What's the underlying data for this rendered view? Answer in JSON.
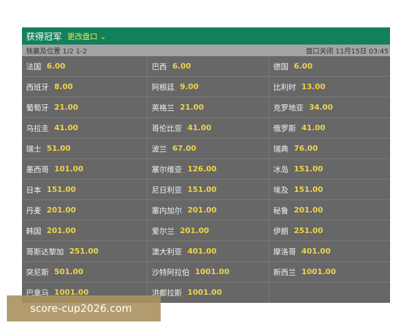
{
  "header": {
    "title": "获得冠军",
    "change_label": "更改盘口",
    "chevron": "chevron-down-icon"
  },
  "subheader": {
    "market": "独赢及位置 1/2 1-2",
    "closing": "盘口关闭 11月15日 03:45"
  },
  "teams": [
    {
      "name": "法国",
      "odds": "6.00"
    },
    {
      "name": "巴西",
      "odds": "6.00"
    },
    {
      "name": "德国",
      "odds": "6.00"
    },
    {
      "name": "西班牙",
      "odds": "8.00"
    },
    {
      "name": "阿根廷",
      "odds": "9.00"
    },
    {
      "name": "比利时",
      "odds": "13.00"
    },
    {
      "name": "葡萄牙",
      "odds": "21.00"
    },
    {
      "name": "英格兰",
      "odds": "21.00"
    },
    {
      "name": "克罗地亚",
      "odds": "34.00"
    },
    {
      "name": "乌拉圭",
      "odds": "41.00"
    },
    {
      "name": "哥伦比亚",
      "odds": "41.00"
    },
    {
      "name": "俄罗斯",
      "odds": "41.00"
    },
    {
      "name": "瑞士",
      "odds": "51.00"
    },
    {
      "name": "波兰",
      "odds": "67.00"
    },
    {
      "name": "瑞典",
      "odds": "76.00"
    },
    {
      "name": "墨西哥",
      "odds": "101.00"
    },
    {
      "name": "塞尔维亚",
      "odds": "126.00"
    },
    {
      "name": "冰岛",
      "odds": "151.00"
    },
    {
      "name": "日本",
      "odds": "151.00"
    },
    {
      "name": "尼日利亚",
      "odds": "151.00"
    },
    {
      "name": "埃及",
      "odds": "151.00"
    },
    {
      "name": "丹麦",
      "odds": "201.00"
    },
    {
      "name": "塞内加尔",
      "odds": "201.00"
    },
    {
      "name": "秘鲁",
      "odds": "201.00"
    },
    {
      "name": "韩国",
      "odds": "201.00"
    },
    {
      "name": "爱尔兰",
      "odds": "201.00"
    },
    {
      "name": "伊朗",
      "odds": "251.00"
    },
    {
      "name": "哥斯达黎加",
      "odds": "251.00"
    },
    {
      "name": "澳大利亚",
      "odds": "401.00"
    },
    {
      "name": "摩洛哥",
      "odds": "401.00"
    },
    {
      "name": "突尼斯",
      "odds": "501.00"
    },
    {
      "name": "沙特阿拉伯",
      "odds": "1001.00"
    },
    {
      "name": "新西兰",
      "odds": "1001.00"
    },
    {
      "name": "巴拿马",
      "odds": "1001.00"
    },
    {
      "name": "洪都拉斯",
      "odds": "1001.00"
    }
  ],
  "watermark": "score-cup2026.com"
}
